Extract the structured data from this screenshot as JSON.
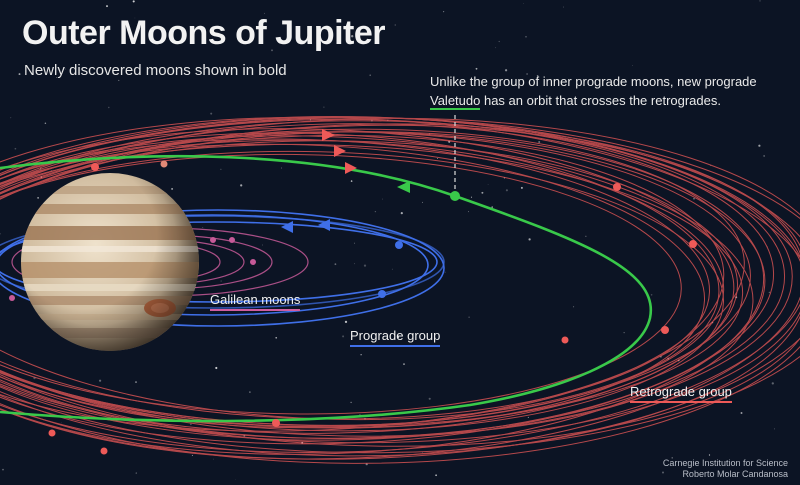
{
  "title": "Outer Moons of Jupiter",
  "subtitle": "Newly discovered moons shown in bold",
  "annotation": {
    "line1": "Unlike the group of inner prograde moons, new prograde",
    "valetudo": "Valetudo",
    "line2_rest": " has an orbit that crosses the retrogrades."
  },
  "labels": {
    "galilean": "Galilean moons",
    "prograde": "Prograde group",
    "retrograde": "Retrograde group"
  },
  "credit": {
    "line1": "Carnegie Institution for Science",
    "line2": "Roberto Molar Candanosa"
  },
  "colors": {
    "background": "#0c1424",
    "retrograde": "#ee5a58",
    "prograde": "#3f6fe8",
    "galilean": "#d05da0",
    "valetudo": "#39c94a"
  }
}
